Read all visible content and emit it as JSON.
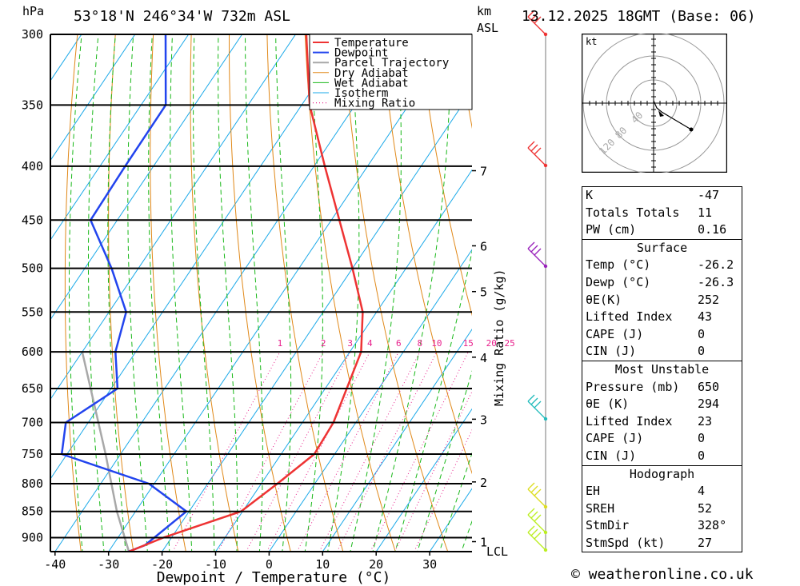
{
  "header": {
    "pressure_unit": "hPa",
    "location": "53°18'N  246°34'W  732m  ASL",
    "km_label": "km",
    "asl_label": "ASL",
    "datetime": "13.12.2025  18GMT  (Base: 06)"
  },
  "chart_data": {
    "type": "skew-t",
    "xlabel": "Dewpoint / Temperature (°C)",
    "ylabel_left": "hPa",
    "ylabel_right": "Mixing Ratio (g/kg)",
    "temp_ticks": [
      -40,
      -30,
      -20,
      -10,
      0,
      10,
      20,
      30
    ],
    "pressure_levels": [
      300,
      350,
      400,
      450,
      500,
      550,
      600,
      650,
      700,
      750,
      800,
      850,
      900
    ],
    "km_ticks": [
      {
        "label": "7",
        "p": 404
      },
      {
        "label": "6",
        "p": 476
      },
      {
        "label": "5",
        "p": 526
      },
      {
        "label": "4",
        "p": 607
      },
      {
        "label": "3",
        "p": 695
      },
      {
        "label": "2",
        "p": 797
      },
      {
        "label": "1",
        "p": 908
      }
    ],
    "lcl_label": "LCL",
    "mixing_ratio_labels": [
      "1",
      "2",
      "3",
      "4",
      "6",
      "8",
      "10",
      "15",
      "20",
      "25"
    ],
    "mixing_ratio_values": [
      1,
      2,
      3,
      4,
      6,
      8,
      10,
      15,
      20,
      25
    ],
    "legend": [
      "Temperature",
      "Dewpoint",
      "Parcel Trajectory",
      "Dry Adiabat",
      "Wet Adiabat",
      "Isotherm",
      "Mixing Ratio"
    ],
    "colors": {
      "temperature": "#ee3333",
      "dewpoint": "#2244ee",
      "parcel": "#a8a8a8",
      "dry_adiabat": "#e08818",
      "wet_adiabat": "#18b818",
      "isotherm": "#19a8e8",
      "mixing_ratio": "#e8208c"
    },
    "temperature": [
      [
        928,
        -26.2
      ],
      [
        900,
        -21.5
      ],
      [
        850,
        -10.3
      ],
      [
        800,
        -7
      ],
      [
        750,
        -3.8
      ],
      [
        700,
        -4.2
      ],
      [
        600,
        -7.9
      ],
      [
        550,
        -12.6
      ],
      [
        500,
        -20
      ],
      [
        450,
        -28.5
      ],
      [
        400,
        -38
      ],
      [
        350,
        -48.5
      ],
      [
        300,
        -58
      ]
    ],
    "dewpoint": [
      [
        928,
        -26.3
      ],
      [
        915,
        -24
      ],
      [
        900,
        -23.2
      ],
      [
        850,
        -20.5
      ],
      [
        800,
        -31
      ],
      [
        750,
        -51
      ],
      [
        700,
        -54.2
      ],
      [
        650,
        -48.8
      ],
      [
        600,
        -53.8
      ],
      [
        550,
        -56.8
      ],
      [
        500,
        -65
      ],
      [
        450,
        -75
      ],
      [
        400,
        -75.3
      ],
      [
        350,
        -75.4
      ],
      [
        300,
        -84.3
      ]
    ],
    "parcel": [
      [
        928,
        -26.2
      ],
      [
        850,
        -33.5
      ],
      [
        750,
        -42.8
      ],
      [
        600,
        -60
      ]
    ],
    "wind_barbs_color": [
      "#ee3333",
      "#ee3333",
      "#9922bb",
      "#22bbbb",
      "#dddd22"
    ]
  },
  "hodograph": {
    "unit": "kt",
    "ring_labels": [
      "40",
      "80",
      "120"
    ]
  },
  "indices": {
    "top": [
      {
        "label": "K",
        "value": "-47"
      },
      {
        "label": "Totals Totals",
        "value": "11"
      },
      {
        "label": "PW (cm)",
        "value": "0.16"
      }
    ],
    "surface": {
      "title": "Surface",
      "rows": [
        {
          "label": "Temp (°C)",
          "value": "-26.2"
        },
        {
          "label": "Dewp (°C)",
          "value": "-26.3"
        },
        {
          "label": "θE(K)",
          "value": "252"
        },
        {
          "label": "Lifted Index",
          "value": "43"
        },
        {
          "label": "CAPE (J)",
          "value": "0"
        },
        {
          "label": "CIN (J)",
          "value": "0"
        }
      ]
    },
    "most_unstable": {
      "title": "Most Unstable",
      "rows": [
        {
          "label": "Pressure (mb)",
          "value": "650"
        },
        {
          "label": "θE (K)",
          "value": "294"
        },
        {
          "label": "Lifted Index",
          "value": "23"
        },
        {
          "label": "CAPE (J)",
          "value": "0"
        },
        {
          "label": "CIN (J)",
          "value": "0"
        }
      ]
    },
    "hodograph": {
      "title": "Hodograph",
      "rows": [
        {
          "label": "EH",
          "value": "4"
        },
        {
          "label": "SREH",
          "value": "52"
        },
        {
          "label": "StmDir",
          "value": "328°"
        },
        {
          "label": "StmSpd (kt)",
          "value": "27"
        }
      ]
    }
  },
  "copyright": "© weatheronline.co.uk"
}
